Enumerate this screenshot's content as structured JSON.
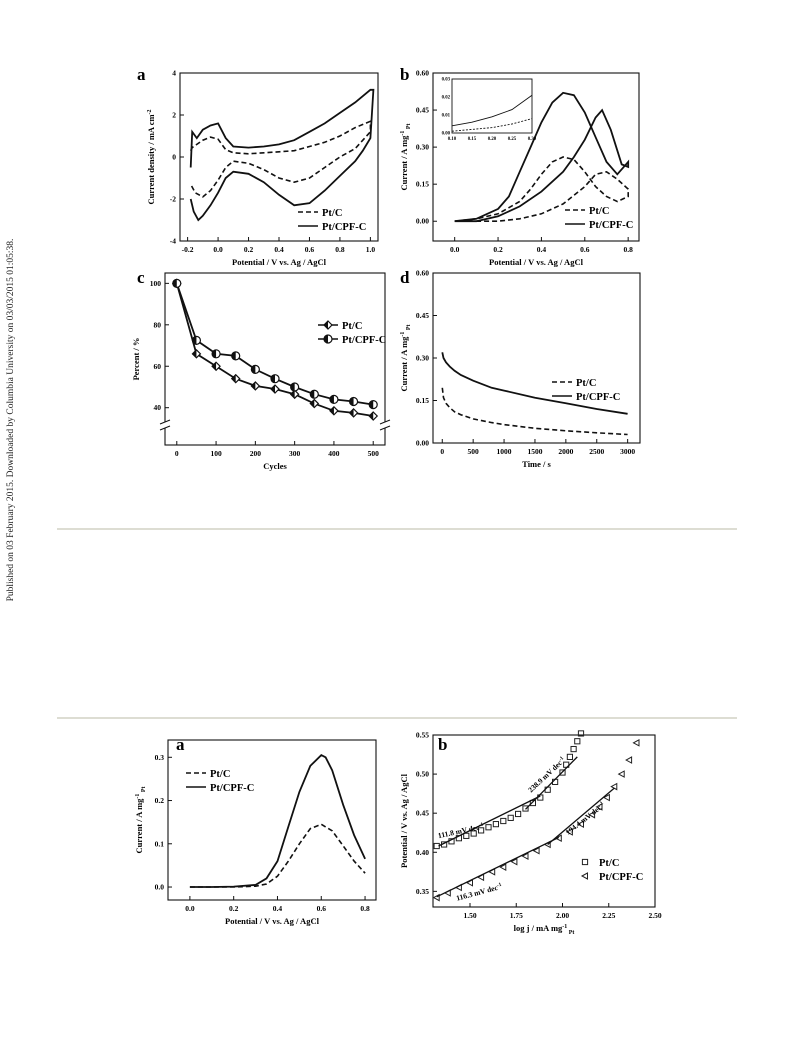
{
  "side_note": "Published on 03 February 2015. Downloaded by Columbia University on 03/03/2015 01:05:38.",
  "chart_data": [
    {
      "panel": "a",
      "type": "line",
      "xlabel": "Potential / V vs. Ag / AgCl",
      "ylabel": "Current density / mA cm⁻²",
      "xlim": [
        -0.25,
        1.05
      ],
      "ylim": [
        -4,
        4
      ],
      "xticks": [
        -0.2,
        0.0,
        0.2,
        0.4,
        0.6,
        0.8,
        1.0
      ],
      "xtick_labels": [
        "-0.2",
        "0.0",
        "0.2",
        "0.4",
        "0.6",
        "0.8",
        "1.0"
      ],
      "yticks": [
        -4,
        -2,
        0,
        2,
        4
      ],
      "ytick_labels": [
        "-4",
        "-2",
        "0",
        "2",
        "4"
      ],
      "legend": "bottom-right",
      "series": [
        {
          "name": "Pt/C",
          "style": "dash",
          "x": [
            -0.18,
            -0.17,
            -0.14,
            -0.1,
            -0.05,
            0.0,
            0.05,
            0.1,
            0.2,
            0.3,
            0.4,
            0.5,
            0.6,
            0.7,
            0.8,
            0.9,
            1.0,
            1.0,
            0.95,
            0.9,
            0.8,
            0.7,
            0.6,
            0.5,
            0.4,
            0.3,
            0.2,
            0.1,
            0.05,
            0.0,
            -0.05,
            -0.1,
            -0.15,
            -0.18
          ],
          "y": [
            0.3,
            0.45,
            0.6,
            0.8,
            0.95,
            0.85,
            0.35,
            0.2,
            0.15,
            0.2,
            0.25,
            0.3,
            0.5,
            0.7,
            1.0,
            1.4,
            1.7,
            1.2,
            0.8,
            0.4,
            0.0,
            -0.5,
            -1.0,
            -1.2,
            -1.0,
            -0.6,
            -0.3,
            -0.2,
            -0.5,
            -1.1,
            -1.6,
            -1.9,
            -1.7,
            -1.3
          ]
        },
        {
          "name": "Pt/CPF-C",
          "style": "solid",
          "x": [
            -0.18,
            -0.17,
            -0.14,
            -0.1,
            -0.05,
            0.0,
            0.05,
            0.1,
            0.2,
            0.3,
            0.4,
            0.5,
            0.6,
            0.7,
            0.8,
            0.9,
            1.0,
            1.02,
            1.0,
            0.95,
            0.9,
            0.8,
            0.7,
            0.6,
            0.5,
            0.4,
            0.3,
            0.2,
            0.1,
            0.05,
            0.0,
            -0.05,
            -0.1,
            -0.13,
            -0.16,
            -0.18
          ],
          "y": [
            -0.5,
            1.2,
            0.9,
            1.3,
            1.5,
            1.6,
            0.9,
            0.5,
            0.45,
            0.5,
            0.6,
            0.8,
            1.2,
            1.6,
            2.1,
            2.6,
            3.2,
            3.2,
            0.9,
            0.3,
            -0.2,
            -0.9,
            -1.6,
            -2.2,
            -2.3,
            -1.8,
            -1.2,
            -0.8,
            -0.7,
            -1.0,
            -1.7,
            -2.3,
            -2.8,
            -3.0,
            -2.6,
            -2.0
          ]
        }
      ]
    },
    {
      "panel": "b",
      "type": "line",
      "xlabel": "Potential / V vs. Ag / AgCl",
      "ylabel": "Current / A mg⁻¹ Pt",
      "xlim": [
        -0.1,
        0.85
      ],
      "ylim": [
        -0.08,
        0.6
      ],
      "xticks": [
        0.0,
        0.2,
        0.4,
        0.6,
        0.8
      ],
      "xtick_labels": [
        "0.0",
        "0.2",
        "0.4",
        "0.6",
        "0.8"
      ],
      "yticks": [
        0.0,
        0.15,
        0.3,
        0.45,
        0.6
      ],
      "ytick_labels": [
        "0.00",
        "0.15",
        "0.30",
        "0.45",
        "0.60"
      ],
      "legend": "bottom-right",
      "series": [
        {
          "name": "Pt/C",
          "style": "dash",
          "x": [
            0.0,
            0.1,
            0.2,
            0.3,
            0.35,
            0.4,
            0.45,
            0.5,
            0.55,
            0.6,
            0.65,
            0.7,
            0.75,
            0.8,
            0.8,
            0.75,
            0.7,
            0.65,
            0.6,
            0.5,
            0.4,
            0.3,
            0.2,
            0.1,
            0.0
          ],
          "y": [
            0.0,
            0.01,
            0.03,
            0.08,
            0.13,
            0.19,
            0.24,
            0.26,
            0.25,
            0.2,
            0.14,
            0.1,
            0.08,
            0.1,
            0.13,
            0.17,
            0.2,
            0.19,
            0.14,
            0.07,
            0.03,
            0.01,
            0.0,
            0.0,
            0.0
          ]
        },
        {
          "name": "Pt/CPF-C",
          "style": "solid",
          "x": [
            0.0,
            0.1,
            0.2,
            0.25,
            0.3,
            0.35,
            0.4,
            0.45,
            0.5,
            0.55,
            0.6,
            0.65,
            0.7,
            0.75,
            0.8,
            0.8,
            0.77,
            0.72,
            0.68,
            0.65,
            0.6,
            0.55,
            0.5,
            0.4,
            0.3,
            0.2,
            0.1,
            0.0
          ],
          "y": [
            0.0,
            0.01,
            0.05,
            0.1,
            0.2,
            0.3,
            0.4,
            0.48,
            0.52,
            0.51,
            0.44,
            0.34,
            0.24,
            0.19,
            0.24,
            0.22,
            0.23,
            0.37,
            0.45,
            0.42,
            0.33,
            0.26,
            0.2,
            0.12,
            0.06,
            0.02,
            0.0,
            0.0
          ]
        }
      ],
      "inset": {
        "xlim": [
          0.1,
          0.3
        ],
        "ylim": [
          0.0,
          0.03
        ],
        "xticks": [
          0.1,
          0.15,
          0.2,
          0.25,
          0.3
        ],
        "xtick_labels": [
          "0.10",
          "0.15",
          "0.20",
          "0.25",
          "0.30"
        ],
        "yticks": [
          0.0,
          0.01,
          0.02,
          0.03
        ],
        "ytick_labels": [
          "0.00",
          "0.01",
          "0.02",
          "0.03"
        ],
        "series": [
          {
            "name": "Pt/C",
            "style": "dash",
            "x": [
              0.1,
              0.15,
              0.2,
              0.25,
              0.3
            ],
            "y": [
              0.001,
              0.002,
              0.003,
              0.005,
              0.008
            ]
          },
          {
            "name": "Pt/CPF-C",
            "style": "solid",
            "x": [
              0.1,
              0.15,
              0.2,
              0.25,
              0.3
            ],
            "y": [
              0.004,
              0.006,
              0.009,
              0.013,
              0.021
            ]
          }
        ]
      }
    },
    {
      "panel": "c",
      "type": "line",
      "xlabel": "Cycles",
      "ylabel": "Percent / %",
      "xlim": [
        -30,
        530
      ],
      "ylim": [
        22,
        105
      ],
      "xticks": [
        0,
        100,
        200,
        300,
        400,
        500
      ],
      "xtick_labels": [
        "0",
        "100",
        "200",
        "300",
        "400",
        "500"
      ],
      "yticks": [
        40,
        60,
        80,
        100
      ],
      "ytick_labels": [
        "40",
        "60",
        "80",
        "100"
      ],
      "axis_break": true,
      "legend": "top-right",
      "series": [
        {
          "name": "Pt/C",
          "marker": "diamond-half",
          "x": [
            0,
            50,
            100,
            150,
            200,
            250,
            300,
            350,
            400,
            450,
            500
          ],
          "y": [
            100,
            66,
            60,
            54,
            50.5,
            49,
            46.5,
            42,
            38.5,
            37.5,
            36
          ]
        },
        {
          "name": "Pt/CPF-C",
          "marker": "circle-half",
          "x": [
            0,
            50,
            100,
            150,
            200,
            250,
            300,
            350,
            400,
            450,
            500
          ],
          "y": [
            100,
            72.5,
            66,
            65,
            58.5,
            54,
            50,
            46.5,
            44,
            43,
            41.5
          ]
        }
      ]
    },
    {
      "panel": "d",
      "type": "line",
      "xlabel": "Time / s",
      "ylabel": "Current / A mg⁻¹ Pt",
      "xlim": [
        -150,
        3200
      ],
      "ylim": [
        0,
        0.6
      ],
      "xticks": [
        0,
        500,
        1000,
        1500,
        2000,
        2500,
        3000
      ],
      "xtick_labels": [
        "0",
        "500",
        "1000",
        "1500",
        "2000",
        "2500",
        "3000"
      ],
      "yticks": [
        0.0,
        0.15,
        0.3,
        0.45,
        0.6
      ],
      "ytick_labels": [
        "0.00",
        "0.15",
        "0.30",
        "0.45",
        "0.60"
      ],
      "legend": "right",
      "series": [
        {
          "name": "Pt/C",
          "style": "dash",
          "x": [
            0,
            20,
            60,
            120,
            200,
            300,
            500,
            800,
            1000,
            1500,
            2000,
            2500,
            3000
          ],
          "y": [
            0.195,
            0.16,
            0.14,
            0.125,
            0.11,
            0.1,
            0.085,
            0.072,
            0.065,
            0.052,
            0.043,
            0.036,
            0.03
          ]
        },
        {
          "name": "Pt/CPF-C",
          "style": "solid",
          "x": [
            0,
            20,
            60,
            120,
            200,
            300,
            500,
            800,
            1000,
            1500,
            2000,
            2500,
            3000
          ],
          "y": [
            0.32,
            0.3,
            0.285,
            0.27,
            0.255,
            0.24,
            0.22,
            0.195,
            0.185,
            0.16,
            0.14,
            0.12,
            0.103
          ]
        }
      ]
    },
    {
      "panel": "a",
      "type": "line",
      "xlabel": "Potential / V vs. Ag / AgCl",
      "ylabel": "Current / A mg⁻¹ Pt",
      "xlim": [
        -0.1,
        0.85
      ],
      "ylim": [
        -0.03,
        0.34
      ],
      "xticks": [
        0.0,
        0.2,
        0.4,
        0.6,
        0.8
      ],
      "xtick_labels": [
        "0.0",
        "0.2",
        "0.4",
        "0.6",
        "0.8"
      ],
      "yticks": [
        0.0,
        0.1,
        0.2,
        0.3
      ],
      "ytick_labels": [
        "0.0",
        "0.1",
        "0.2",
        "0.3"
      ],
      "legend": "top-left",
      "series": [
        {
          "name": "Pt/C",
          "style": "dash",
          "x": [
            0.0,
            0.1,
            0.2,
            0.3,
            0.35,
            0.4,
            0.45,
            0.5,
            0.55,
            0.6,
            0.65,
            0.7,
            0.75,
            0.8
          ],
          "y": [
            0.0,
            0.0,
            0.0,
            0.002,
            0.007,
            0.025,
            0.06,
            0.1,
            0.135,
            0.145,
            0.13,
            0.095,
            0.06,
            0.032
          ]
        },
        {
          "name": "Pt/CPF-C",
          "style": "solid",
          "x": [
            0.0,
            0.1,
            0.2,
            0.3,
            0.35,
            0.4,
            0.45,
            0.5,
            0.55,
            0.6,
            0.62,
            0.65,
            0.7,
            0.75,
            0.8
          ],
          "y": [
            0.0,
            0.0,
            0.001,
            0.005,
            0.02,
            0.06,
            0.14,
            0.22,
            0.28,
            0.305,
            0.3,
            0.27,
            0.19,
            0.12,
            0.065
          ]
        }
      ]
    },
    {
      "panel": "b",
      "type": "scatter",
      "xlabel": "log j / mA mg⁻¹ Pt",
      "ylabel": "Potential / V vs. Ag / AgCl",
      "xlim": [
        1.3,
        2.5
      ],
      "ylim": [
        0.33,
        0.55
      ],
      "xticks": [
        1.5,
        1.75,
        2.0,
        2.25,
        2.5
      ],
      "xtick_labels": [
        "1.50",
        "1.75",
        "2.00",
        "2.25",
        "2.50"
      ],
      "yticks": [
        0.35,
        0.4,
        0.45,
        0.5,
        0.55
      ],
      "ytick_labels": [
        "0.35",
        "0.40",
        "0.45",
        "0.50",
        "0.55"
      ],
      "legend": "bottom-right",
      "annotations": [
        "111.8 mV dec⁻¹",
        "238.9 mV dec⁻¹",
        "116.3 mV dec⁻¹",
        "194.4 mV dec⁻¹"
      ],
      "series": [
        {
          "name": "Pt/C",
          "marker": "square",
          "x": [
            1.32,
            1.36,
            1.4,
            1.44,
            1.48,
            1.52,
            1.56,
            1.6,
            1.64,
            1.68,
            1.72,
            1.76,
            1.8,
            1.84,
            1.88,
            1.92,
            1.96,
            2.0,
            2.02,
            2.04,
            2.06,
            2.08,
            2.1
          ],
          "y": [
            0.408,
            0.41,
            0.414,
            0.418,
            0.421,
            0.424,
            0.428,
            0.432,
            0.436,
            0.44,
            0.444,
            0.449,
            0.456,
            0.463,
            0.47,
            0.48,
            0.49,
            0.502,
            0.512,
            0.522,
            0.532,
            0.542,
            0.552
          ]
        },
        {
          "name": "Pt/CPF-C",
          "marker": "triangle-left",
          "x": [
            1.32,
            1.38,
            1.44,
            1.5,
            1.56,
            1.62,
            1.68,
            1.74,
            1.8,
            1.86,
            1.92,
            1.98,
            2.04,
            2.1,
            2.16,
            2.2,
            2.24,
            2.28,
            2.32,
            2.36,
            2.4
          ],
          "y": [
            0.342,
            0.348,
            0.355,
            0.361,
            0.368,
            0.375,
            0.381,
            0.388,
            0.395,
            0.402,
            0.41,
            0.418,
            0.426,
            0.436,
            0.448,
            0.458,
            0.47,
            0.484,
            0.5,
            0.518,
            0.54
          ]
        }
      ],
      "fit_lines": [
        {
          "x": [
            1.33,
            1.88
          ],
          "y": [
            0.408,
            0.472
          ]
        },
        {
          "x": [
            1.8,
            2.08
          ],
          "y": [
            0.455,
            0.522
          ]
        },
        {
          "x": [
            1.32,
            1.98
          ],
          "y": [
            0.343,
            0.419
          ]
        },
        {
          "x": [
            1.92,
            2.28
          ],
          "y": [
            0.41,
            0.482
          ]
        }
      ]
    }
  ]
}
